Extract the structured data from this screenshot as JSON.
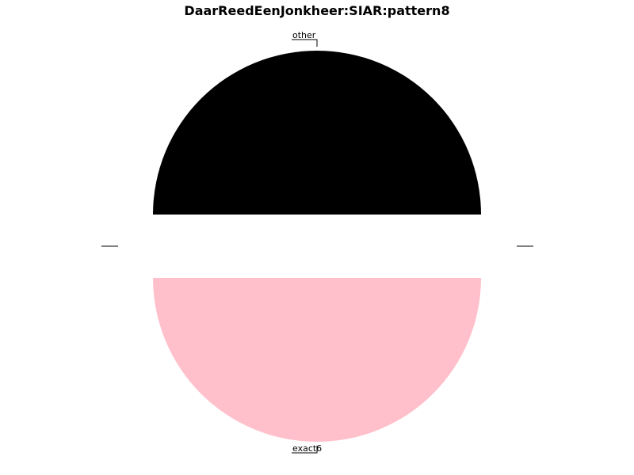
{
  "chart_data": {
    "type": "pie",
    "title": "DaarReedEenJonkheer:SIAR:pattern8",
    "slices": [
      {
        "label": "other",
        "value": 50,
        "color": "#000000"
      },
      {
        "label": "exact6",
        "value": 50,
        "color": "#ffc0cb"
      }
    ],
    "start_angle_deg": 0,
    "counterclockwise": true,
    "exploded": true,
    "legend": "none"
  }
}
